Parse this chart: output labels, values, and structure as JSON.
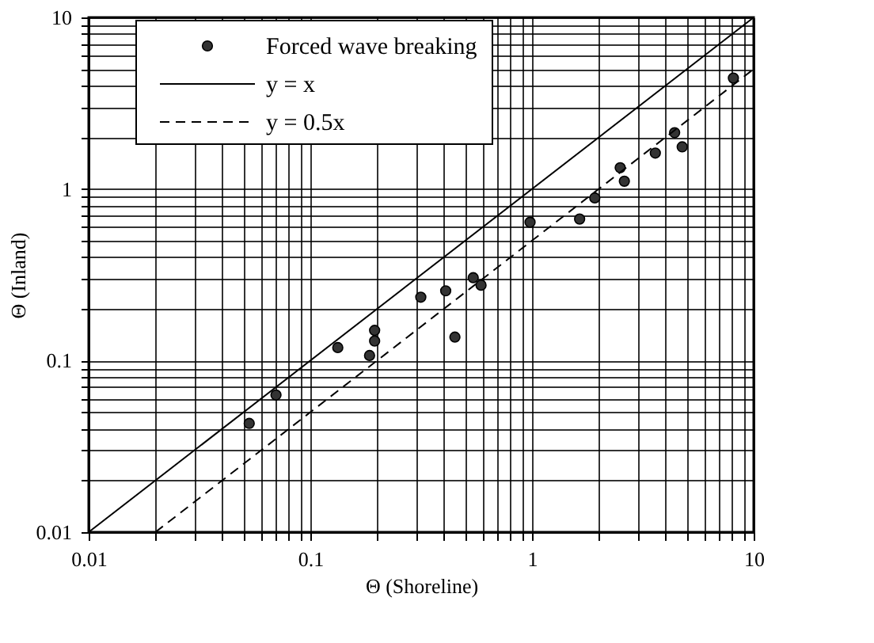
{
  "chart_data": {
    "type": "scatter",
    "xlabel": "Θ (Shoreline)",
    "ylabel": "Θ (Inland)",
    "log": "xy",
    "grid": true,
    "legend": "top left",
    "marker": "circle",
    "xlim": [
      0.01,
      10
    ],
    "ylim": [
      0.01,
      10
    ],
    "xticks": [
      0.01,
      {
        "value": 0.02,
        "label": null
      },
      {
        "value": 0.03,
        "label": null
      },
      {
        "value": 0.04,
        "label": null
      },
      {
        "value": 0.05,
        "label": null
      },
      {
        "value": 0.06,
        "label": null
      },
      {
        "value": 0.07,
        "label": null
      },
      {
        "value": 0.08,
        "label": null
      },
      {
        "value": 0.09,
        "label": null
      },
      0.1,
      {
        "value": 0.2,
        "label": null
      },
      {
        "value": 0.3,
        "label": null
      },
      {
        "value": 0.4,
        "label": null
      },
      {
        "value": 0.5,
        "label": null
      },
      {
        "value": 0.6,
        "label": null
      },
      {
        "value": 0.7,
        "label": null
      },
      {
        "value": 0.8,
        "label": null
      },
      {
        "value": 0.9,
        "label": null
      },
      1,
      {
        "value": 2,
        "label": null
      },
      {
        "value": 3,
        "label": null
      },
      {
        "value": 4,
        "label": null
      },
      {
        "value": 5,
        "label": null
      },
      {
        "value": 6,
        "label": null
      },
      {
        "value": 7,
        "label": null
      },
      {
        "value": 8,
        "label": null
      },
      {
        "value": 9,
        "label": null
      },
      10
    ],
    "yticks": [
      0.01,
      {
        "value": 0.02,
        "label": null
      },
      {
        "value": 0.03,
        "label": null
      },
      {
        "value": 0.04,
        "label": null
      },
      {
        "value": 0.05,
        "label": null
      },
      {
        "value": 0.06,
        "label": null
      },
      {
        "value": 0.07,
        "label": null
      },
      {
        "value": 0.08,
        "label": null
      },
      {
        "value": 0.09,
        "label": null
      },
      0.1,
      {
        "value": 0.2,
        "label": null
      },
      {
        "value": 0.3,
        "label": null
      },
      {
        "value": 0.4,
        "label": null
      },
      {
        "value": 0.5,
        "label": null
      },
      {
        "value": 0.6,
        "label": null
      },
      {
        "value": 0.7,
        "label": null
      },
      {
        "value": 0.8,
        "label": null
      },
      {
        "value": 0.9,
        "label": null
      },
      1,
      {
        "value": 2,
        "label": null
      },
      {
        "value": 3,
        "label": null
      },
      {
        "value": 4,
        "label": null
      },
      {
        "value": 5,
        "label": null
      },
      {
        "value": 6,
        "label": null
      },
      {
        "value": 7,
        "label": null
      },
      {
        "value": 8,
        "label": null
      },
      {
        "value": 9,
        "label": null
      },
      10
    ],
    "series": [
      {
        "name": "Forced wave breaking",
        "color": "#333333",
        "x": [
          0.053,
          0.07,
          0.133,
          0.195,
          0.195,
          0.185,
          0.315,
          0.408,
          0.449,
          0.543,
          0.589,
          0.98,
          1.64,
          1.92,
          2.5,
          2.61,
          3.6,
          4.4,
          4.76,
          8.1
        ],
        "values": [
          0.043,
          0.063,
          0.119,
          0.15,
          0.13,
          0.107,
          0.234,
          0.255,
          0.137,
          0.304,
          0.275,
          0.64,
          0.668,
          0.887,
          1.33,
          1.11,
          1.62,
          2.13,
          1.76,
          4.43
        ]
      },
      {
        "name": "y = x",
        "type": "line",
        "color": "#000000",
        "line_style": "solid",
        "marker": "none",
        "x": [
          0.01,
          10
        ],
        "values": [
          0.01,
          10
        ]
      },
      {
        "name": "y = 0.5x",
        "type": "line",
        "color": "#000000",
        "line_style": "dashed",
        "marker": "none",
        "x": [
          0.02,
          10
        ],
        "values": [
          0.01,
          5
        ]
      }
    ]
  }
}
